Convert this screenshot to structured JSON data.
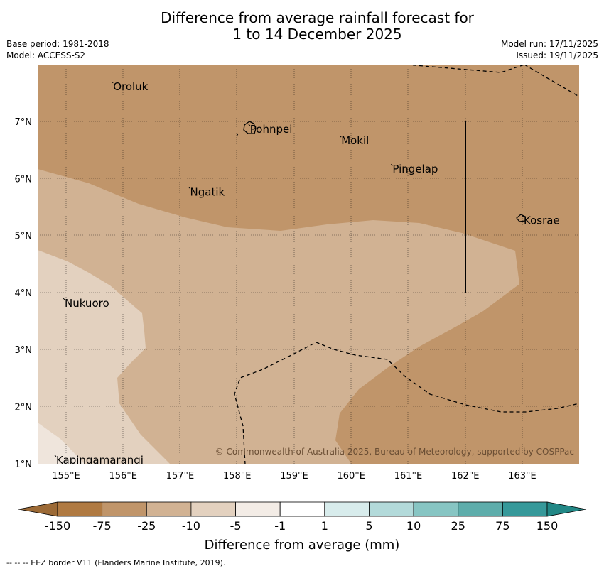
{
  "title": {
    "line1": "Difference from average rainfall forecast for",
    "line2": "1 to 14 December 2025"
  },
  "meta": {
    "base_period": "Base period: 1981-2018",
    "model": "Model: ACCESS-S2",
    "model_run": "Model run: 17/11/2025",
    "issued": "Issued: 19/11/2025"
  },
  "axes": {
    "longitudes": [
      "155°E",
      "156°E",
      "157°E",
      "158°E",
      "159°E",
      "160°E",
      "161°E",
      "162°E",
      "163°E"
    ],
    "latitudes": [
      "7°N",
      "6°N",
      "5°N",
      "4°N",
      "3°N",
      "2°N",
      "1°N"
    ]
  },
  "places": [
    {
      "name": "Oroluk",
      "lon": 155.8,
      "lat": 7.65
    },
    {
      "name": "Pohnpei",
      "lon": 158.2,
      "lat": 6.9
    },
    {
      "name": "Mokil",
      "lon": 159.8,
      "lat": 6.7
    },
    {
      "name": "Pingelap",
      "lon": 160.7,
      "lat": 6.2
    },
    {
      "name": "Ngatik",
      "lon": 157.15,
      "lat": 5.8
    },
    {
      "name": "Kosrae",
      "lon": 163.0,
      "lat": 5.3
    },
    {
      "name": "Nukuoro",
      "lon": 154.95,
      "lat": 3.85
    },
    {
      "name": "Kapingamarangi",
      "lon": 154.8,
      "lat": 1.1
    }
  ],
  "copyright": "© Commonwealth of Australia 2025, Bureau of Meteorology, supported by COSPPac",
  "colorbar": {
    "ticks": [
      "-150",
      "-75",
      "-25",
      "-10",
      "-5",
      "-1",
      "1",
      "5",
      "10",
      "25",
      "75",
      "150"
    ],
    "colors": [
      "#b07a42",
      "#c0956a",
      "#d1b293",
      "#e3d1bf",
      "#f3ece6",
      "#ffffff",
      "#d8ecec",
      "#b3dada",
      "#87c5c3",
      "#5eadab",
      "#36999a"
    ],
    "under_color": "#9c6a36",
    "over_color": "#228886",
    "label": "Difference from average (mm)"
  },
  "footer": "--  --  -- EEZ border V11 (Flanders Marine Institute, 2019).",
  "colors": {
    "band_dark": "#c0956a",
    "band_mid": "#d1b293",
    "band_light": "#e3d1bf"
  }
}
